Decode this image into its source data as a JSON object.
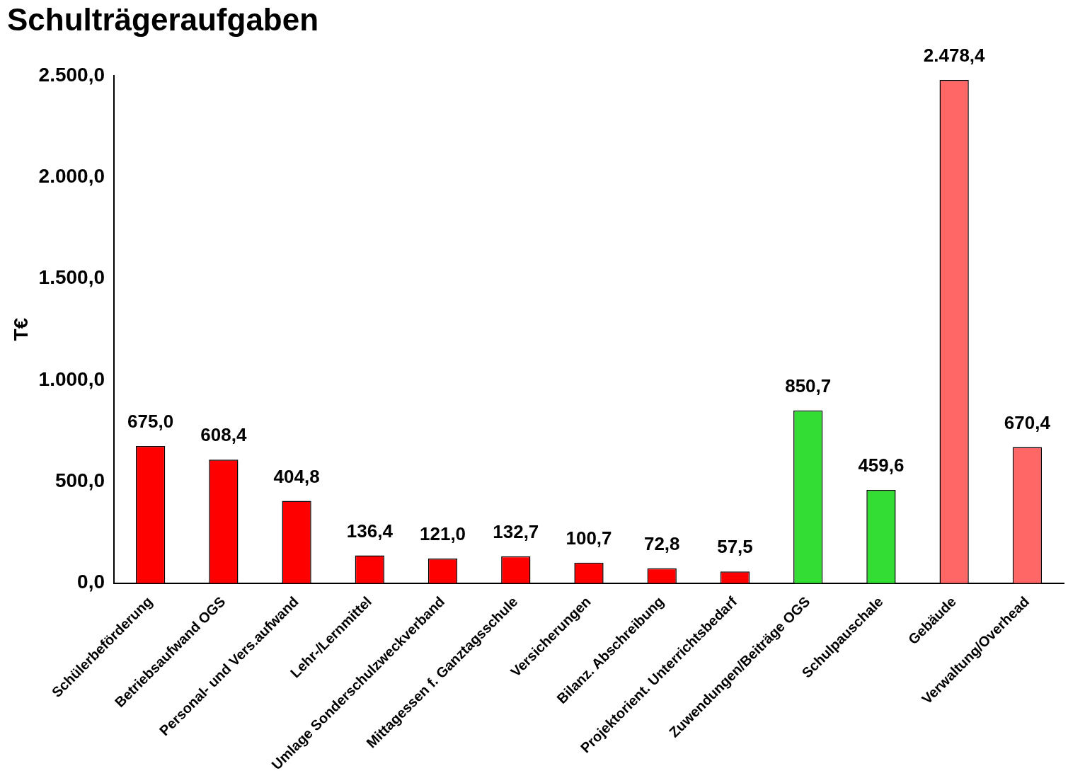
{
  "chart_data": {
    "type": "bar",
    "title": "Schulträgeraufgaben",
    "ylabel": "T€",
    "categories": [
      "Schülerbeförderung",
      "Betriebsaufwand OGS",
      "Personal- und Vers.aufwand",
      "Lehr-/Lernmittel",
      "Umlage Sonderschulzweckverband",
      "Mittagessen f. Ganztagsschule",
      "Versicherungen",
      "Bilanz. Abschreibung",
      "Projektorient. Unterrichtsbedarf",
      "Zuwendungen/Beiträge OGS",
      "Schulpauschale",
      "Gebäude",
      "Verwaltung/Overhead"
    ],
    "values": [
      675.0,
      608.4,
      404.8,
      136.4,
      121.0,
      132.7,
      100.7,
      72.8,
      57.5,
      850.7,
      459.6,
      2478.4,
      670.4
    ],
    "value_labels": [
      "675,0",
      "608,4",
      "404,8",
      "136,4",
      "121,0",
      "132,7",
      "100,7",
      "72,8",
      "57,5",
      "850,7",
      "459,6",
      "2.478,4",
      "670,4"
    ],
    "colors": [
      "#ff0000",
      "#ff0000",
      "#ff0000",
      "#ff0000",
      "#ff0000",
      "#ff0000",
      "#ff0000",
      "#ff0000",
      "#ff0000",
      "#33dd33",
      "#33dd33",
      "#ff6666",
      "#ff6666"
    ],
    "ylim": [
      0,
      2500
    ],
    "yticks": [
      {
        "value": 0,
        "label": "0,0"
      },
      {
        "value": 500,
        "label": "500,0"
      },
      {
        "value": 1000,
        "label": "1.000,0"
      },
      {
        "value": 1500,
        "label": "1.500,0"
      },
      {
        "value": 2000,
        "label": "2.000,0"
      },
      {
        "value": 2500,
        "label": "2.500,0"
      }
    ],
    "grid": false,
    "legend": false
  }
}
